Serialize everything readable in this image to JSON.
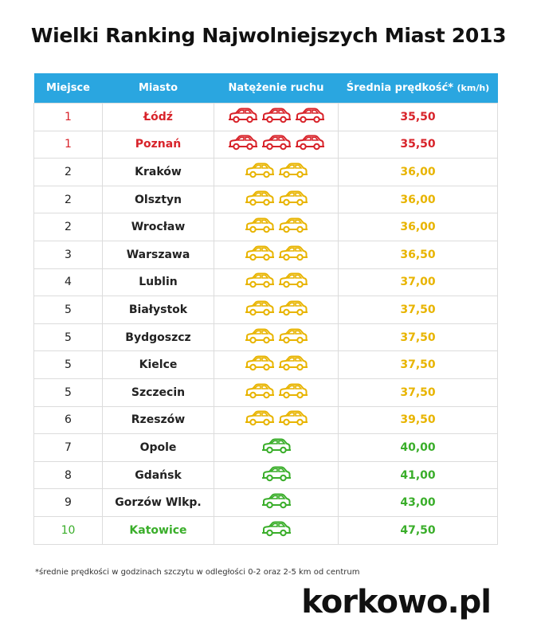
{
  "title": "Wielki Ranking Najwolniejszych Miast 2013",
  "headers": {
    "rank": "Miejsce",
    "city": "Miasto",
    "traffic": "Natężenie ruchu",
    "speed": "Średnia prędkość*",
    "speed_unit": "(km/h)"
  },
  "colors": {
    "red": "#d8232a",
    "yellow": "#e8b400",
    "green": "#3aae2a",
    "header": "#2aa6e0"
  },
  "rows": [
    {
      "rank": "1",
      "city": "Łódź",
      "cars": 3,
      "level": "red",
      "speed": "35,50"
    },
    {
      "rank": "1",
      "city": "Poznań",
      "cars": 3,
      "level": "red",
      "speed": "35,50"
    },
    {
      "rank": "2",
      "city": "Kraków",
      "cars": 2,
      "level": "yellow",
      "speed": "36,00"
    },
    {
      "rank": "2",
      "city": "Olsztyn",
      "cars": 2,
      "level": "yellow",
      "speed": "36,00"
    },
    {
      "rank": "2",
      "city": "Wrocław",
      "cars": 2,
      "level": "yellow",
      "speed": "36,00"
    },
    {
      "rank": "3",
      "city": "Warszawa",
      "cars": 2,
      "level": "yellow",
      "speed": "36,50"
    },
    {
      "rank": "4",
      "city": "Lublin",
      "cars": 2,
      "level": "yellow",
      "speed": "37,00"
    },
    {
      "rank": "5",
      "city": "Białystok",
      "cars": 2,
      "level": "yellow",
      "speed": "37,50"
    },
    {
      "rank": "5",
      "city": "Bydgoszcz",
      "cars": 2,
      "level": "yellow",
      "speed": "37,50"
    },
    {
      "rank": "5",
      "city": "Kielce",
      "cars": 2,
      "level": "yellow",
      "speed": "37,50"
    },
    {
      "rank": "5",
      "city": "Szczecin",
      "cars": 2,
      "level": "yellow",
      "speed": "37,50"
    },
    {
      "rank": "6",
      "city": "Rzeszów",
      "cars": 2,
      "level": "yellow",
      "speed": "39,50"
    },
    {
      "rank": "7",
      "city": "Opole",
      "cars": 1,
      "level": "green",
      "speed": "40,00"
    },
    {
      "rank": "8",
      "city": "Gdańsk",
      "cars": 1,
      "level": "green",
      "speed": "41,00"
    },
    {
      "rank": "9",
      "city": "Gorzów Wlkp.",
      "cars": 1,
      "level": "green",
      "speed": "43,00"
    },
    {
      "rank": "10",
      "city": "Katowice",
      "cars": 1,
      "level": "green",
      "speed": "47,50",
      "highlight": true
    }
  ],
  "car_icon": "car-outline-icon",
  "footnote": "*średnie prędkości w godzinach szczytu w odległości 0-2 oraz 2-5 km od centrum",
  "logo": "korkowo.pl"
}
